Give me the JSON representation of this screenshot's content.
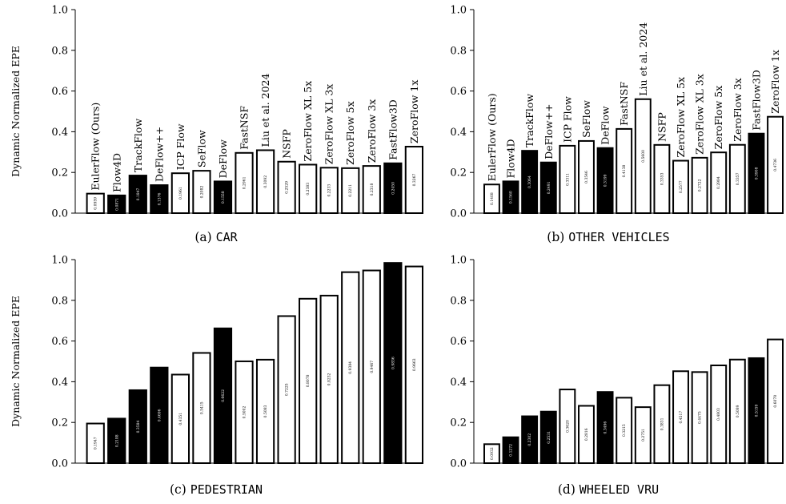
{
  "y_axis_label": "Dynamic Normalized EPE",
  "chart_data": [
    {
      "type": "bar",
      "caption_prefix": "(a) ",
      "caption_class": "CAR",
      "ylabel": "Dynamic Normalized EPE",
      "ylim": [
        0,
        1.0
      ],
      "yticks": [
        "0.0",
        "0.2",
        "0.4",
        "0.6",
        "0.8",
        "1.0"
      ],
      "show_names": true,
      "categories": [
        "EulerFlow (Ours)",
        "Flow4D",
        "TrackFlow",
        "DeFlow++",
        "ICP Flow",
        "SeFlow",
        "DeFlow",
        "FastNSF",
        "Liu et al. 2024",
        "NSFP",
        "ZeroFlow XL 5x",
        "ZeroFlow XL 3x",
        "ZeroFlow 5x",
        "ZeroFlow 3x",
        "FastFlow3D",
        "ZeroFlow 1x"
      ],
      "values": [
        0.0959,
        0.0871,
        0.1847,
        0.1376,
        0.1961,
        0.2082,
        0.1558,
        0.2961,
        0.3092,
        0.2529,
        0.2383,
        0.2233,
        0.2211,
        0.2318,
        0.245,
        0.3267
      ],
      "value_labels": [
        "0.0959",
        "0.0871",
        "0.1847",
        "0.1376",
        "0.1961",
        "0.2082",
        "0.1558",
        "0.2961",
        "0.3092",
        "0.2529",
        "0.2383",
        "0.2233",
        "0.2211",
        "0.2318",
        "0.2450",
        "0.3267"
      ],
      "filled": [
        false,
        true,
        true,
        true,
        false,
        false,
        true,
        false,
        false,
        false,
        false,
        false,
        false,
        false,
        true,
        false
      ]
    },
    {
      "type": "bar",
      "caption_prefix": "(b) ",
      "caption_class": "OTHER VEHICLES",
      "ylabel": "",
      "ylim": [
        0,
        1.0
      ],
      "yticks": [
        "0.0",
        "0.2",
        "0.4",
        "0.6",
        "0.8",
        "1.0"
      ],
      "show_names": true,
      "categories": [
        "EulerFlow (Ours)",
        "Flow4D",
        "TrackFlow",
        "DeFlow++",
        "ICP Flow",
        "SeFlow",
        "DeFlow",
        "FastNSF",
        "Liu et al. 2024",
        "NSFP",
        "ZeroFlow XL 5x",
        "ZeroFlow XL 3x",
        "ZeroFlow 5x",
        "ZeroFlow 3x",
        "FastFlow3D",
        "ZeroFlow 1x"
      ],
      "values": [
        0.1408,
        0.156,
        0.3064,
        0.2491,
        0.3311,
        0.3546,
        0.3199,
        0.4138,
        0.56,
        0.3353,
        0.2577,
        0.2722,
        0.2984,
        0.3357,
        0.3908,
        0.4736
      ],
      "value_labels": [
        "0.1408",
        "0.1560",
        "0.3064",
        "0.2491",
        "0.3311",
        "0.3546",
        "0.3199",
        "0.4138",
        "0.5600",
        "0.3353",
        "0.2577",
        "0.2722",
        "0.2984",
        "0.3357",
        "0.3908",
        "0.4736"
      ],
      "filled": [
        false,
        true,
        true,
        true,
        false,
        false,
        true,
        false,
        false,
        false,
        false,
        false,
        false,
        false,
        true,
        false
      ]
    },
    {
      "type": "bar",
      "caption_prefix": "(c) ",
      "caption_class": "PEDESTRIAN",
      "ylabel": "Dynamic Normalized EPE",
      "ylim": [
        0,
        1.0
      ],
      "yticks": [
        "0.0",
        "0.2",
        "0.4",
        "0.6",
        "0.8",
        "1.0"
      ],
      "show_names": false,
      "values": [
        0.1947,
        0.2188,
        0.3584,
        0.4696,
        0.4351,
        0.5415,
        0.6622,
        0.5002,
        0.5083,
        0.7225,
        0.8078,
        0.8232,
        0.9384,
        0.9467,
        0.9836,
        0.9663
      ],
      "value_labels": [
        "0.1947",
        "0.2188",
        "0.3584",
        "0.4696",
        "0.4351",
        "0.5415",
        "0.6622",
        "0.5002",
        "0.5083",
        "0.7225",
        "0.8078",
        "0.8232",
        "0.9384",
        "0.9467",
        "0.9836",
        "0.9663"
      ],
      "filled": [
        false,
        true,
        true,
        true,
        false,
        false,
        true,
        false,
        false,
        false,
        false,
        false,
        false,
        false,
        true,
        false
      ]
    },
    {
      "type": "bar",
      "caption_prefix": "(d) ",
      "caption_class": "WHEELED VRU",
      "ylabel": "",
      "ylim": [
        0,
        1.0
      ],
      "yticks": [
        "0.0",
        "0.2",
        "0.4",
        "0.6",
        "0.8",
        "1.0"
      ],
      "show_names": false,
      "values": [
        0.0932,
        0.1272,
        0.2302,
        0.2531,
        0.362,
        0.2816,
        0.3496,
        0.3215,
        0.2751,
        0.3831,
        0.4517,
        0.4475,
        0.4803,
        0.5089,
        0.5159,
        0.6078
      ],
      "value_labels": [
        "0.0932",
        "0.1272",
        "0.2302",
        "0.2531",
        "0.3620",
        "0.2816",
        "0.3496",
        "0.3215",
        "0.2751",
        "0.3831",
        "0.4517",
        "0.4475",
        "0.4803",
        "0.5089",
        "0.5159",
        "0.6078"
      ],
      "filled": [
        false,
        true,
        true,
        true,
        false,
        false,
        true,
        false,
        false,
        false,
        false,
        false,
        false,
        false,
        true,
        false
      ]
    }
  ]
}
